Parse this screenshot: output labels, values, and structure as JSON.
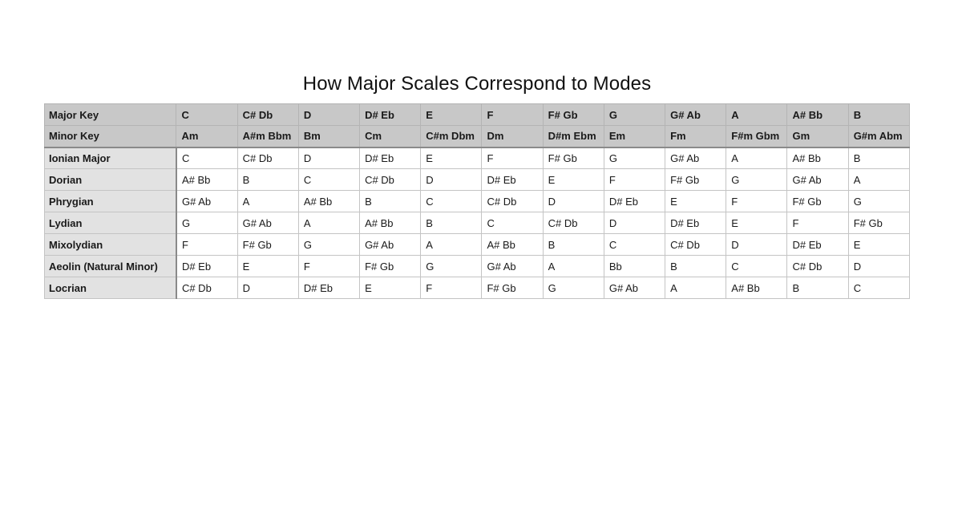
{
  "title": "How Major Scales Correspond to Modes",
  "colors": {
    "header_bg": "#c8c8c8",
    "label_bg": "#e2e2e2",
    "grid": "#c4c4c4"
  },
  "table": {
    "header_rows": [
      {
        "label": "Major Key",
        "cells": [
          "C",
          "C# Db",
          "D",
          "D# Eb",
          "E",
          "F",
          "F# Gb",
          "G",
          "G# Ab",
          "A",
          "A# Bb",
          "B"
        ]
      },
      {
        "label": "Minor Key",
        "cells": [
          "Am",
          "A#m Bbm",
          "Bm",
          "Cm",
          "C#m Dbm",
          "Dm",
          "D#m Ebm",
          "Em",
          "Fm",
          "F#m Gbm",
          "Gm",
          "G#m Abm"
        ]
      }
    ],
    "rows": [
      {
        "label": "Ionian Major",
        "cells": [
          "C",
          "C# Db",
          "D",
          "D# Eb",
          "E",
          "F",
          "F# Gb",
          "G",
          "G# Ab",
          "A",
          "A# Bb",
          "B"
        ]
      },
      {
        "label": "Dorian",
        "cells": [
          "A# Bb",
          "B",
          "C",
          "C# Db",
          "D",
          "D# Eb",
          "E",
          "F",
          "F# Gb",
          "G",
          "G# Ab",
          "A"
        ]
      },
      {
        "label": "Phrygian",
        "cells": [
          "G# Ab",
          "A",
          "A# Bb",
          "B",
          "C",
          "C# Db",
          "D",
          "D# Eb",
          "E",
          "F",
          "F# Gb",
          "G"
        ]
      },
      {
        "label": "Lydian",
        "cells": [
          "G",
          "G# Ab",
          "A",
          "A# Bb",
          "B",
          "C",
          "C# Db",
          "D",
          "D# Eb",
          "E",
          "F",
          "F# Gb"
        ]
      },
      {
        "label": "Mixolydian",
        "cells": [
          "F",
          "F# Gb",
          "G",
          "G# Ab",
          "A",
          "A# Bb",
          "B",
          "C",
          "C# Db",
          "D",
          "D# Eb",
          "E"
        ]
      },
      {
        "label": "Aeolin (Natural Minor)",
        "cells": [
          "D# Eb",
          "E",
          "F",
          "F# Gb",
          "G",
          "G# Ab",
          "A",
          "Bb",
          "B",
          "C",
          "C# Db",
          "D"
        ]
      },
      {
        "label": "Locrian",
        "cells": [
          "C# Db",
          "D",
          "D# Eb",
          "E",
          "F",
          "F# Gb",
          "G",
          "G# Ab",
          "A",
          "A# Bb",
          "B",
          "C"
        ]
      }
    ]
  }
}
